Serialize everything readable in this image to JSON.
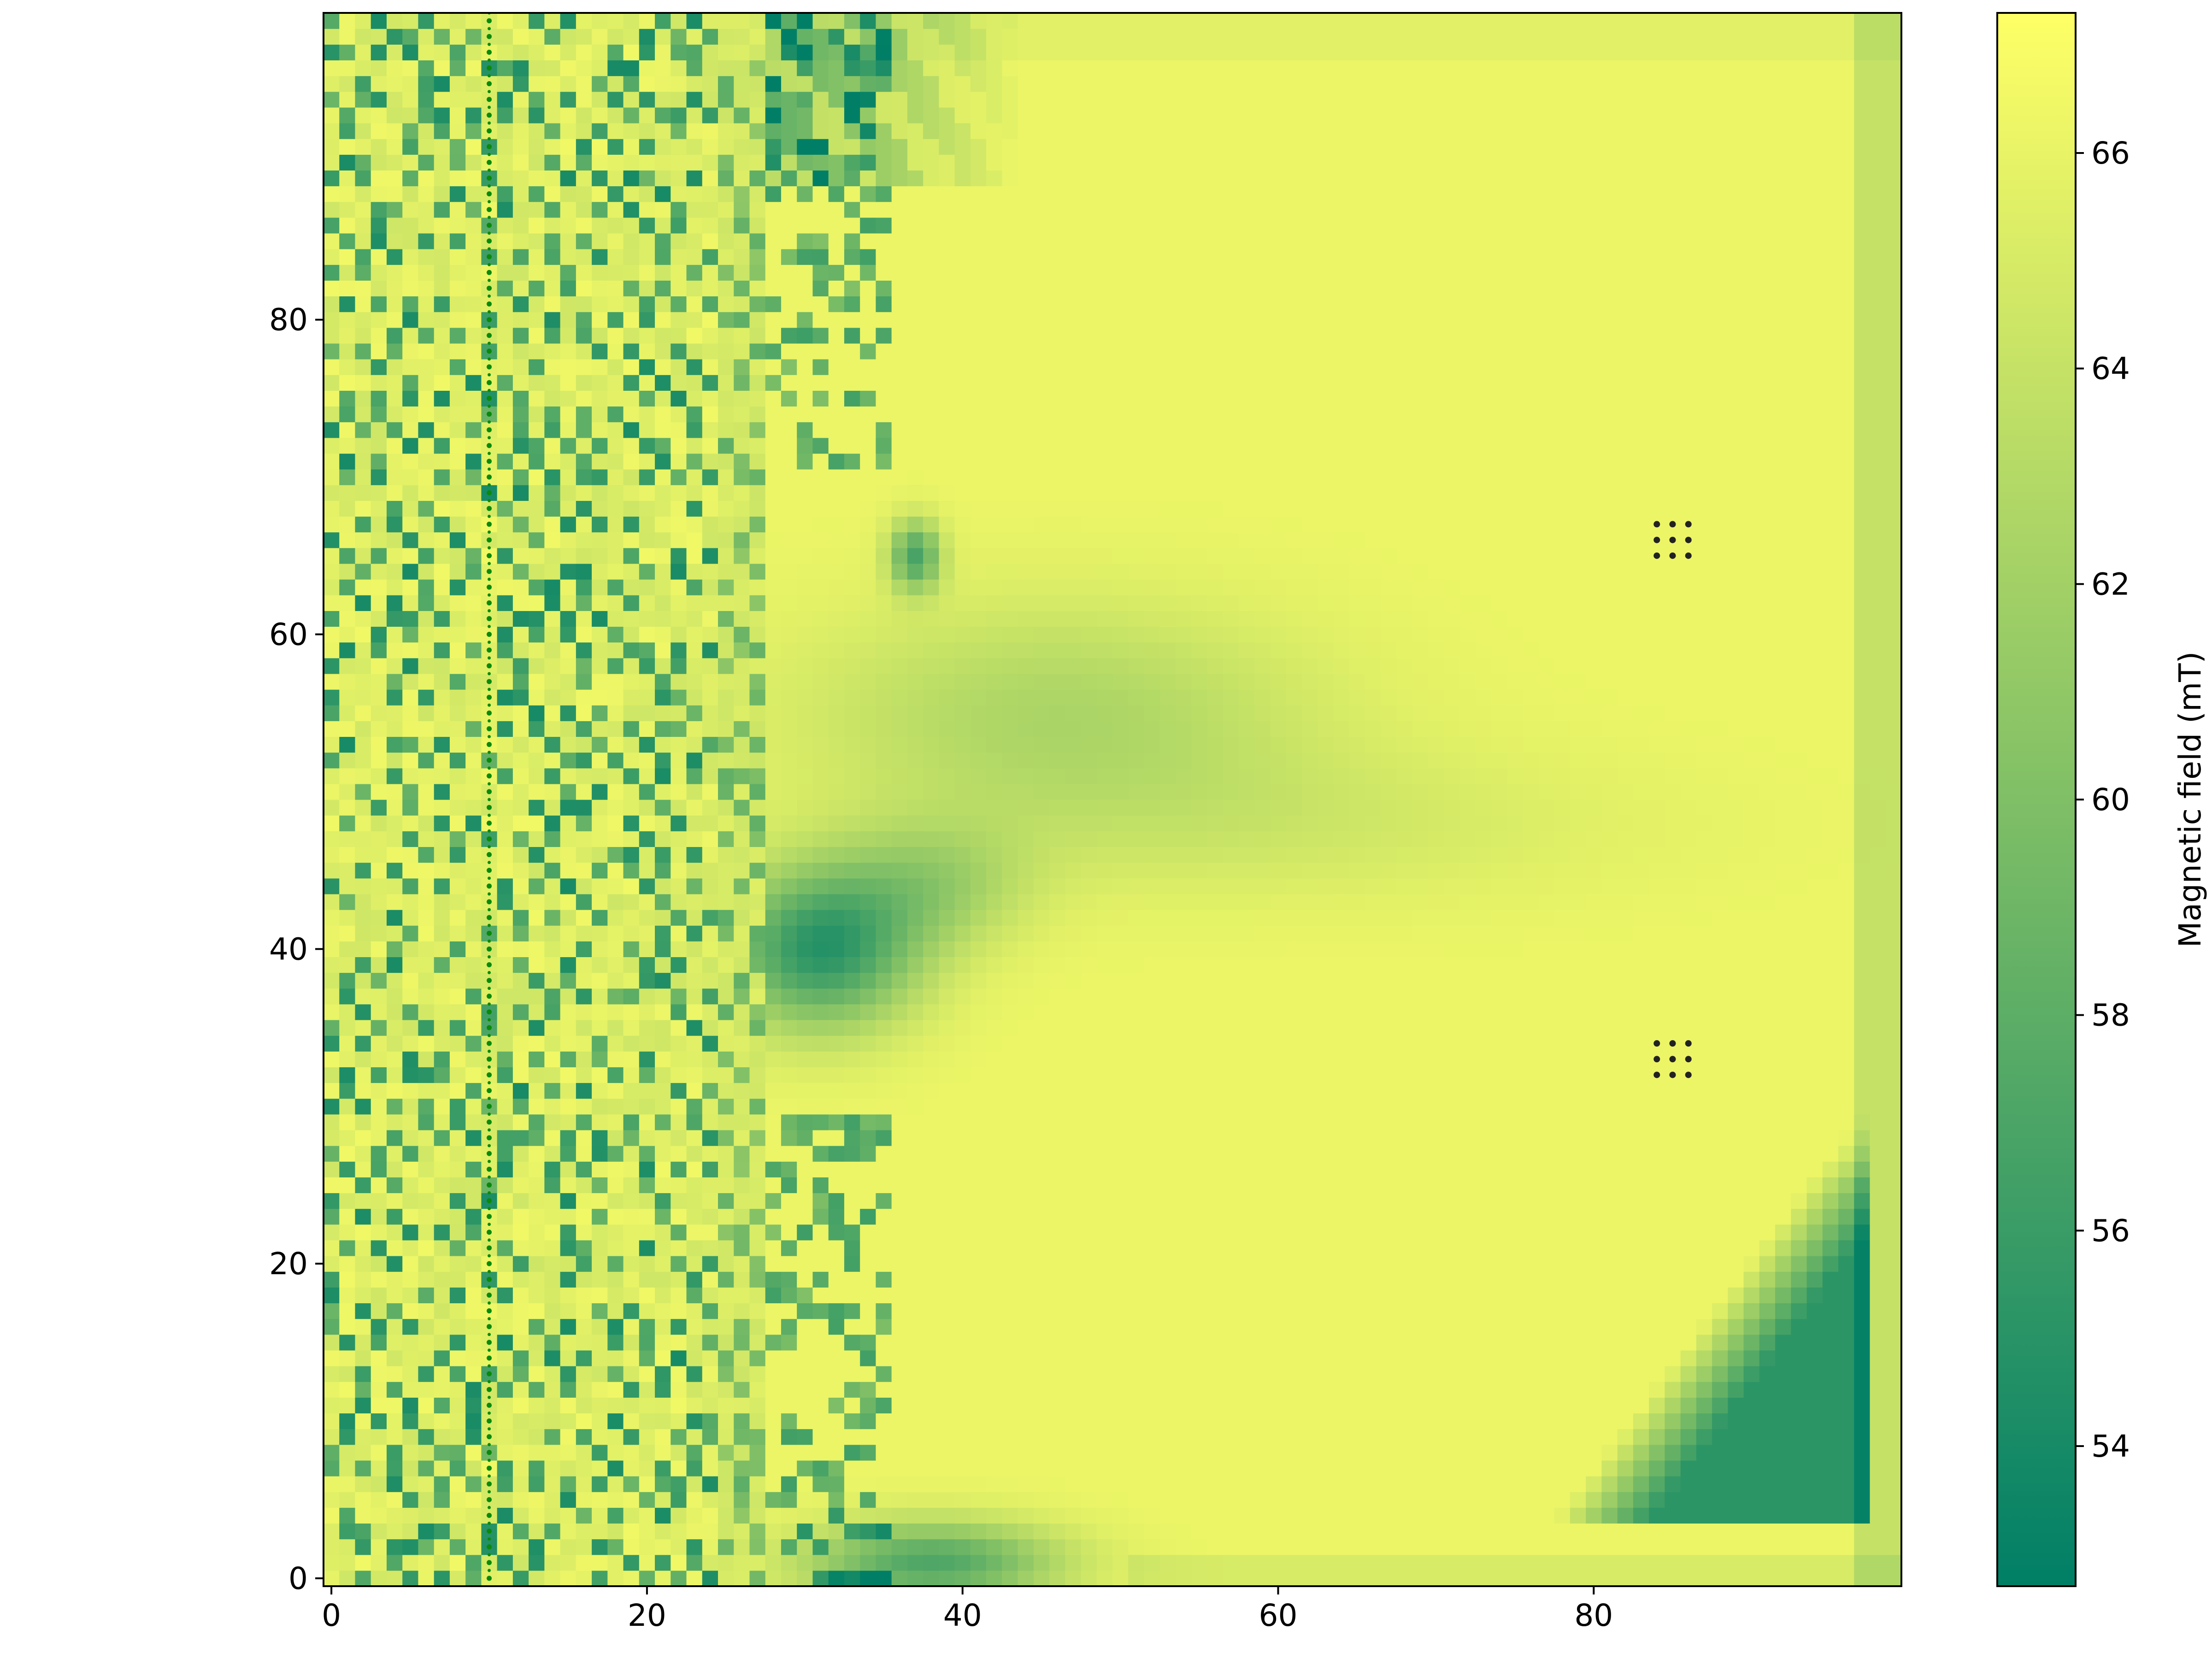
{
  "chart_data": {
    "type": "heatmap",
    "title": "",
    "xlabel": "",
    "ylabel": "",
    "xlim": [
      -0.5,
      99.5
    ],
    "ylim": [
      -0.5,
      99.5
    ],
    "xticks": [
      0,
      20,
      40,
      60,
      80
    ],
    "yticks": [
      0,
      20,
      40,
      60,
      80
    ],
    "colorbar": {
      "label": "Magnetic field (mT)",
      "range": [
        52.7,
        67.3
      ],
      "ticks": [
        54,
        56,
        58,
        60,
        62,
        64,
        66
      ],
      "colormap": [
        "#007f66",
        "#ffff66"
      ]
    },
    "grid": false,
    "field_features": [
      {
        "kind": "fine-pattern band",
        "x_range": [
          0,
          28
        ],
        "y_range": [
          0,
          99
        ],
        "value_range": [
          53,
          67
        ]
      },
      {
        "kind": "low lobe",
        "x": 31,
        "y": 40,
        "value": 54.5
      },
      {
        "kind": "low lobe",
        "x": 37,
        "y": 65,
        "value": 56
      },
      {
        "kind": "low wedge",
        "x_range": [
          78,
          97
        ],
        "y_range": [
          4,
          30
        ],
        "value": 54
      },
      {
        "kind": "moderate lobe",
        "x": 45,
        "y": 55,
        "value": 62.5
      },
      {
        "kind": "low band",
        "x_range": [
          28,
          48
        ],
        "y_range": [
          0,
          4
        ],
        "value": 55
      },
      {
        "kind": "low cluster",
        "x_range": [
          26,
          40
        ],
        "y_range": [
          90,
          99
        ],
        "value": 55
      },
      {
        "kind": "background",
        "value": 66
      }
    ],
    "markers": [
      {
        "name": "vertical dotted line",
        "x": 10,
        "y_range": [
          0,
          99
        ],
        "color": "#0a8a0a"
      },
      {
        "name": "dot grid upper",
        "x": [
          84,
          85,
          86
        ],
        "y": [
          65,
          66,
          67
        ],
        "color": "#222222"
      },
      {
        "name": "dot grid lower",
        "x": [
          84,
          85,
          86
        ],
        "y": [
          32,
          33,
          34
        ],
        "color": "#222222"
      }
    ]
  }
}
